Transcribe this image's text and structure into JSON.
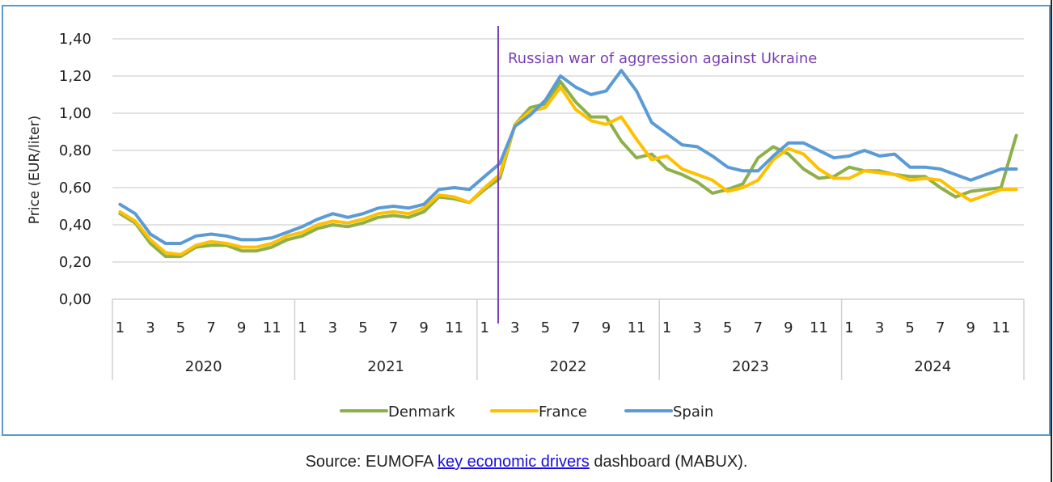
{
  "chart_data": {
    "type": "line",
    "title": "",
    "xlabel": "",
    "ylabel": "Price (EUR/liter)",
    "ylim": [
      0,
      1.4
    ],
    "yticks": [
      "0,00",
      "0,20",
      "0,40",
      "0,60",
      "0,80",
      "1,00",
      "1,20",
      "1,40"
    ],
    "grid": true,
    "legend_position": "bottom",
    "years": [
      "2020",
      "2021",
      "2022",
      "2023",
      "2024"
    ],
    "month_tick_labels": [
      "1",
      "3",
      "5",
      "7",
      "9",
      "11"
    ],
    "annotation": {
      "text": "Russian war of aggression against Ukraine",
      "year_index": 2,
      "month": 2,
      "color": "#7a3fb0"
    },
    "series": [
      {
        "name": "Denmark",
        "color": "#8db04a",
        "values": [
          0.46,
          0.41,
          0.3,
          0.23,
          0.23,
          0.28,
          0.29,
          0.29,
          0.26,
          0.26,
          0.28,
          0.32,
          0.34,
          0.38,
          0.4,
          0.39,
          0.41,
          0.44,
          0.45,
          0.44,
          0.47,
          0.55,
          0.54,
          0.52,
          0.59,
          0.65,
          0.94,
          1.03,
          1.05,
          1.17,
          1.06,
          0.98,
          0.98,
          0.85,
          0.76,
          0.78,
          0.7,
          0.67,
          0.63,
          0.57,
          0.59,
          0.62,
          0.76,
          0.82,
          0.78,
          0.7,
          0.65,
          0.66,
          0.71,
          0.69,
          0.69,
          0.67,
          0.66,
          0.66,
          0.6,
          0.55,
          0.58,
          0.59,
          0.6,
          0.88
        ]
      },
      {
        "name": "France",
        "color": "#ffc000",
        "values": [
          0.47,
          0.42,
          0.32,
          0.25,
          0.24,
          0.29,
          0.31,
          0.3,
          0.28,
          0.28,
          0.3,
          0.34,
          0.36,
          0.4,
          0.42,
          0.41,
          0.43,
          0.46,
          0.47,
          0.46,
          0.49,
          0.56,
          0.55,
          0.52,
          0.6,
          0.67,
          0.94,
          1.01,
          1.03,
          1.14,
          1.02,
          0.96,
          0.94,
          0.98,
          0.86,
          0.75,
          0.77,
          0.7,
          0.67,
          0.64,
          0.58,
          0.6,
          0.64,
          0.75,
          0.81,
          0.78,
          0.7,
          0.65,
          0.65,
          0.69,
          0.68,
          0.67,
          0.64,
          0.65,
          0.64,
          0.58,
          0.53,
          0.56,
          0.59,
          0.59
        ]
      },
      {
        "name": "Spain",
        "color": "#5b9bd5",
        "values": [
          0.51,
          0.46,
          0.35,
          0.3,
          0.3,
          0.34,
          0.35,
          0.34,
          0.32,
          0.32,
          0.33,
          0.36,
          0.39,
          0.43,
          0.46,
          0.44,
          0.46,
          0.49,
          0.5,
          0.49,
          0.51,
          0.59,
          0.6,
          0.59,
          0.66,
          0.73,
          0.93,
          0.99,
          1.07,
          1.2,
          1.14,
          1.1,
          1.12,
          1.23,
          1.12,
          0.95,
          0.89,
          0.83,
          0.82,
          0.77,
          0.71,
          0.69,
          0.69,
          0.77,
          0.84,
          0.84,
          0.8,
          0.76,
          0.77,
          0.8,
          0.77,
          0.78,
          0.71,
          0.71,
          0.7,
          0.67,
          0.64,
          0.67,
          0.7,
          0.7
        ]
      }
    ]
  },
  "footer": {
    "prefix": "Source: EUMOFA ",
    "link": "key economic drivers",
    "suffix": " dashboard (MABUX)."
  }
}
